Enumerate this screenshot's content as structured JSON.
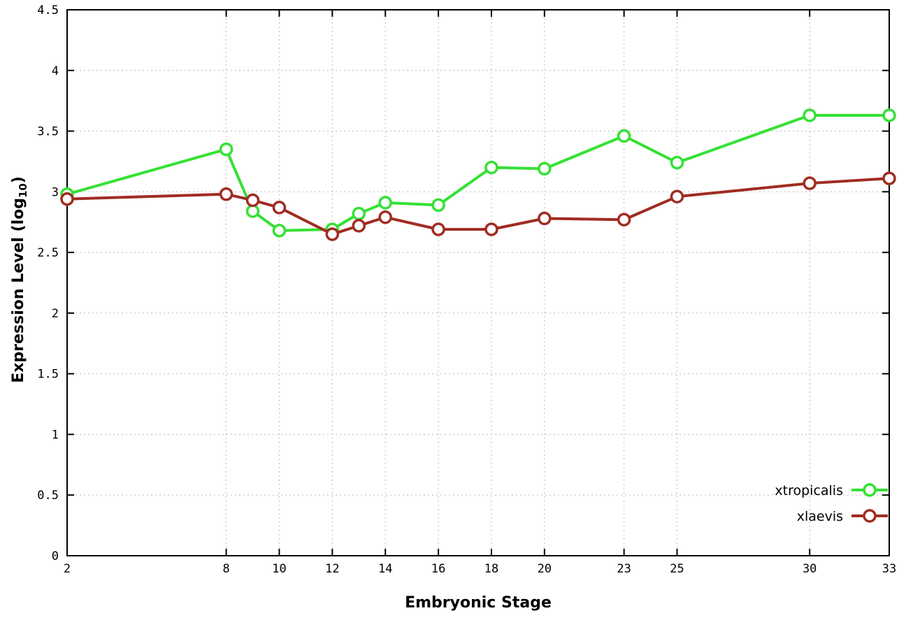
{
  "chart_data": {
    "type": "line",
    "title": "",
    "xlabel": "Embryonic Stage",
    "ylabel": "Expression Level (log10)",
    "ylabel_parts": {
      "main": "Expression Level (log",
      "sub": "10",
      "close": ")"
    },
    "xlim": [
      2,
      33
    ],
    "ylim": [
      0,
      4.5
    ],
    "grid": true,
    "legend_position": "bottom-right",
    "x": [
      2,
      8,
      9,
      10,
      12,
      13,
      14,
      16,
      18,
      20,
      23,
      25,
      30,
      33
    ],
    "xticks": {
      "values": [
        2,
        8,
        10,
        12,
        14,
        16,
        18,
        20,
        23,
        25,
        30,
        33
      ],
      "labels": [
        "2",
        "8",
        "10",
        "12",
        "14",
        "16",
        "18",
        "20",
        "23",
        "25",
        "30",
        "33"
      ]
    },
    "yticks": {
      "values": [
        0,
        0.5,
        1,
        1.5,
        2,
        2.5,
        3,
        3.5,
        4,
        4.5
      ],
      "labels": [
        "0",
        "0.5",
        "1",
        "1.5",
        "2",
        "2.5",
        "3",
        "3.5",
        "4",
        "4.5"
      ]
    },
    "series": [
      {
        "name": "xtropicalis",
        "color": "#35e135",
        "values": [
          2.98,
          3.35,
          2.84,
          2.68,
          2.69,
          2.82,
          2.91,
          2.89,
          3.2,
          3.19,
          3.46,
          3.24,
          3.63,
          3.63
        ]
      },
      {
        "name": "xlaevis",
        "color": "#a02c22",
        "values": [
          2.94,
          2.98,
          2.93,
          2.87,
          2.65,
          2.72,
          2.79,
          2.69,
          2.69,
          2.78,
          2.77,
          2.96,
          3.07,
          3.11
        ]
      }
    ]
  },
  "colors": {
    "background": "#ffffff",
    "border": "#000000",
    "grid": "#bcbcbc",
    "text": "#000000",
    "marker_fill": "#ffffff"
  }
}
